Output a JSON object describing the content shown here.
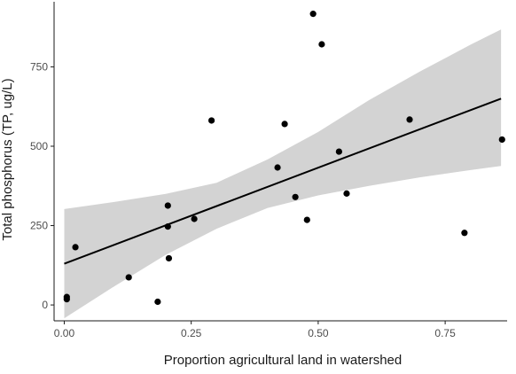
{
  "chart_data": {
    "type": "scatter",
    "title": "",
    "xlabel": "Proportion agricultural land in watershed",
    "ylabel": "Total phosphorus (TP, ug/L)",
    "xlim": [
      -0.02,
      0.872
    ],
    "ylim": [
      -50,
      955
    ],
    "x_ticks": [
      {
        "value": 0.0,
        "label": "0.00"
      },
      {
        "value": 0.25,
        "label": "0.25"
      },
      {
        "value": 0.5,
        "label": "0.50"
      },
      {
        "value": 0.75,
        "label": "0.75"
      }
    ],
    "y_ticks": [
      {
        "value": 0,
        "label": "0"
      },
      {
        "value": 250,
        "label": "250"
      },
      {
        "value": 500,
        "label": "500"
      },
      {
        "value": 750,
        "label": "750"
      }
    ],
    "grid": false,
    "points": [
      {
        "x": 0.005,
        "y": 25
      },
      {
        "x": 0.005,
        "y": 18
      },
      {
        "x": 0.022,
        "y": 182
      },
      {
        "x": 0.127,
        "y": 87
      },
      {
        "x": 0.184,
        "y": 10
      },
      {
        "x": 0.204,
        "y": 313
      },
      {
        "x": 0.204,
        "y": 247
      },
      {
        "x": 0.206,
        "y": 147
      },
      {
        "x": 0.256,
        "y": 271
      },
      {
        "x": 0.29,
        "y": 581
      },
      {
        "x": 0.42,
        "y": 433
      },
      {
        "x": 0.434,
        "y": 570
      },
      {
        "x": 0.455,
        "y": 340
      },
      {
        "x": 0.478,
        "y": 268
      },
      {
        "x": 0.49,
        "y": 917
      },
      {
        "x": 0.507,
        "y": 821
      },
      {
        "x": 0.541,
        "y": 483
      },
      {
        "x": 0.556,
        "y": 351
      },
      {
        "x": 0.68,
        "y": 584
      },
      {
        "x": 0.788,
        "y": 227
      },
      {
        "x": 0.862,
        "y": 521
      }
    ],
    "fit_line": [
      {
        "x": 0.0,
        "y": 130
      },
      {
        "x": 0.86,
        "y": 650
      }
    ],
    "confidence_band": [
      {
        "x": 0.0,
        "lower": -42,
        "upper": 302
      },
      {
        "x": 0.1,
        "lower": 60,
        "upper": 325
      },
      {
        "x": 0.2,
        "lower": 158,
        "upper": 350
      },
      {
        "x": 0.3,
        "lower": 240,
        "upper": 385
      },
      {
        "x": 0.4,
        "lower": 305,
        "upper": 458
      },
      {
        "x": 0.5,
        "lower": 345,
        "upper": 545
      },
      {
        "x": 0.6,
        "lower": 375,
        "upper": 645
      },
      {
        "x": 0.7,
        "lower": 402,
        "upper": 735
      },
      {
        "x": 0.8,
        "lower": 425,
        "upper": 820
      },
      {
        "x": 0.86,
        "lower": 438,
        "upper": 868
      }
    ],
    "colors": {
      "point": "#000000",
      "fit_line": "#000000",
      "band": "#d3d3d3",
      "axis": "#1a1a1a",
      "tick_label": "#4d4d4d",
      "background": "#ffffff"
    }
  }
}
